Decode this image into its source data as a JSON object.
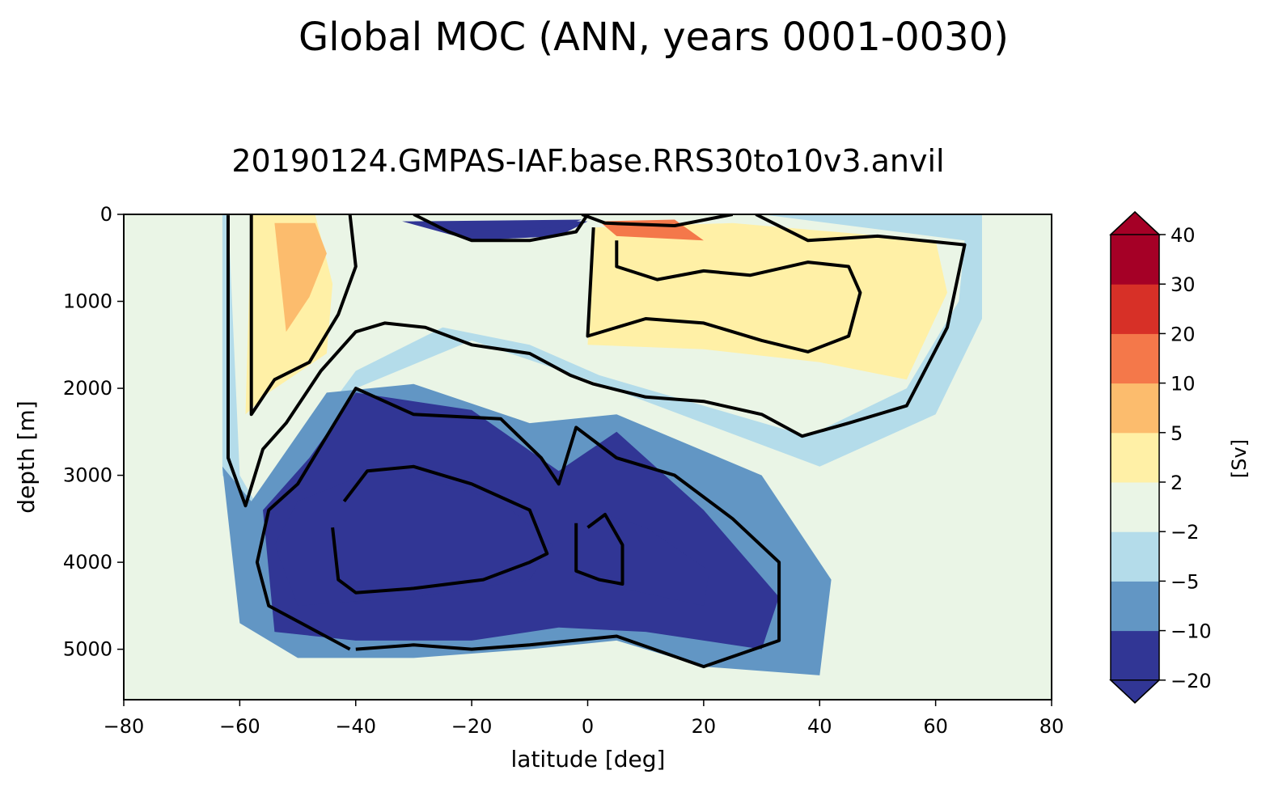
{
  "chart_data": {
    "type": "heatmap",
    "title": "Global MOC (ANN, years 0001-0030)",
    "subtitle": "20190124.GMPAS-IAF.base.RRS30to10v3.anvil",
    "xlabel": "latitude [deg]",
    "ylabel": "depth [m]",
    "xlim": [
      -80,
      80
    ],
    "ylim": [
      5580,
      0
    ],
    "y_inverted": true,
    "xticks": [
      -80,
      -60,
      -40,
      -20,
      0,
      20,
      40,
      60,
      80
    ],
    "xtick_labels": [
      "−80",
      "−60",
      "−40",
      "−20",
      "0",
      "20",
      "40",
      "60",
      "80"
    ],
    "yticks": [
      0,
      1000,
      2000,
      3000,
      4000,
      5000
    ],
    "ytick_labels": [
      "0",
      "1000",
      "2000",
      "3000",
      "4000",
      "5000"
    ],
    "grid": false,
    "colorbar": {
      "label": "[Sv]",
      "levels": [
        -20,
        -10,
        -5,
        -2,
        2,
        5,
        10,
        20,
        30,
        40
      ],
      "tick_labels": [
        "−20",
        "−10",
        "−5",
        "−2",
        "2",
        "5",
        "10",
        "20",
        "30",
        "40"
      ],
      "colors": [
        "#313695",
        "#6296c4",
        "#b4dcea",
        "#eaf5e6",
        "#fff0a6",
        "#fcbc6d",
        "#f4784a",
        "#d73027",
        "#a50026"
      ],
      "extend": "both",
      "extend_low_color": "#313695",
      "extend_high_color": "#a50026"
    },
    "regions": [
      {
        "level": 2,
        "cells": [
          [
            -63,
            0
          ],
          [
            -63,
            1300
          ],
          [
            -63,
            3000
          ],
          [
            -58,
            3450
          ],
          [
            -50,
            2900
          ],
          [
            -40,
            2000
          ],
          [
            -20,
            1450
          ],
          [
            0,
            1900
          ],
          [
            20,
            2400
          ],
          [
            40,
            2900
          ],
          [
            60,
            2300
          ],
          [
            68,
            1200
          ],
          [
            68,
            0
          ]
        ]
      },
      {
        "level": 3,
        "cells": [
          [
            -62,
            0
          ],
          [
            -61,
            1500
          ],
          [
            -60,
            3000
          ],
          [
            -57,
            3350
          ],
          [
            -50,
            2700
          ],
          [
            -40,
            1800
          ],
          [
            -25,
            1300
          ],
          [
            -10,
            1500
          ],
          [
            2,
            1850
          ],
          [
            20,
            2200
          ],
          [
            38,
            2550
          ],
          [
            55,
            2000
          ],
          [
            64,
            1000
          ],
          [
            65,
            300
          ],
          [
            30,
            0
          ]
        ]
      },
      {
        "level": 4,
        "cells": [
          [
            -58,
            0
          ],
          [
            -59,
            2300
          ],
          [
            -55,
            2050
          ],
          [
            -45,
            1600
          ],
          [
            -44,
            800
          ],
          [
            -47,
            0
          ]
        ]
      },
      {
        "level": 4,
        "cells": [
          [
            1,
            150
          ],
          [
            0,
            1500
          ],
          [
            20,
            1550
          ],
          [
            40,
            1700
          ],
          [
            55,
            1900
          ],
          [
            62,
            900
          ],
          [
            60,
            300
          ],
          [
            25,
            100
          ]
        ]
      },
      {
        "level": 5,
        "cells": [
          [
            -54,
            100
          ],
          [
            -52,
            1350
          ],
          [
            -48,
            950
          ],
          [
            -45,
            450
          ],
          [
            -47,
            100
          ]
        ]
      },
      {
        "level": 6,
        "cells": [
          [
            2,
            80
          ],
          [
            5,
            250
          ],
          [
            20,
            300
          ],
          [
            15,
            60
          ]
        ]
      },
      {
        "level": 1,
        "cells": [
          [
            -63,
            2900
          ],
          [
            -60,
            4700
          ],
          [
            -50,
            5100
          ],
          [
            -30,
            5100
          ],
          [
            -10,
            5000
          ],
          [
            5,
            4900
          ],
          [
            20,
            5200
          ],
          [
            40,
            5300
          ],
          [
            42,
            4200
          ],
          [
            30,
            3000
          ],
          [
            5,
            2300
          ],
          [
            -10,
            2400
          ],
          [
            -30,
            1950
          ],
          [
            -45,
            2050
          ],
          [
            -58,
            3300
          ]
        ]
      },
      {
        "level": 0,
        "cells": [
          [
            -56,
            3400
          ],
          [
            -54,
            4800
          ],
          [
            -40,
            4900
          ],
          [
            -20,
            4900
          ],
          [
            -5,
            4750
          ],
          [
            10,
            4800
          ],
          [
            30,
            5000
          ],
          [
            33,
            4400
          ],
          [
            20,
            3400
          ],
          [
            5,
            2500
          ],
          [
            -5,
            2950
          ],
          [
            -20,
            2250
          ],
          [
            -40,
            2050
          ],
          [
            -48,
            2800
          ]
        ]
      },
      {
        "level": 0,
        "cells": [
          [
            -32,
            80
          ],
          [
            -20,
            300
          ],
          [
            -5,
            250
          ],
          [
            0,
            80
          ]
        ]
      },
      {
        "level": -1,
        "cells": [
          [
            -54,
            3800
          ],
          [
            -50,
            4500
          ],
          [
            -30,
            4400
          ],
          [
            -10,
            4200
          ],
          [
            -6,
            3800
          ],
          [
            -15,
            3300
          ],
          [
            -35,
            2900
          ],
          [
            -50,
            3300
          ]
        ]
      },
      {
        "level": -1,
        "cells": [
          [
            -2,
            3600
          ],
          [
            -2,
            4200
          ],
          [
            6,
            4300
          ],
          [
            20,
            4500
          ],
          [
            21,
            4100
          ],
          [
            10,
            3600
          ],
          [
            3,
            3450
          ]
        ]
      },
      {
        "level": -1,
        "cells": [
          [
            -30,
            80
          ],
          [
            -20,
            200
          ],
          [
            -5,
            150
          ],
          [
            -1,
            60
          ]
        ]
      }
    ],
    "contour_lines": [
      [
        [
          -62,
          10
        ],
        [
          -62,
          2800
        ],
        [
          -59,
          3350
        ],
        [
          -56,
          2700
        ],
        [
          -52,
          2400
        ],
        [
          -46,
          1800
        ],
        [
          -40,
          1350
        ],
        [
          -35,
          1250
        ],
        [
          -28,
          1300
        ],
        [
          -20,
          1500
        ],
        [
          -10,
          1600
        ],
        [
          -3,
          1850
        ],
        [
          1,
          1950
        ],
        [
          10,
          2100
        ],
        [
          20,
          2150
        ],
        [
          30,
          2300
        ],
        [
          37,
          2550
        ],
        [
          45,
          2400
        ],
        [
          55,
          2200
        ],
        [
          62,
          1300
        ],
        [
          65,
          350
        ],
        [
          50,
          250
        ],
        [
          38,
          300
        ],
        [
          29,
          0
        ]
      ],
      [
        [
          -58,
          0
        ],
        [
          -58,
          2300
        ],
        [
          -54,
          1900
        ],
        [
          -48,
          1700
        ],
        [
          -43,
          1150
        ],
        [
          -40,
          600
        ],
        [
          -41,
          0
        ]
      ],
      [
        [
          1,
          150
        ],
        [
          0,
          1400
        ],
        [
          10,
          1200
        ],
        [
          20,
          1250
        ],
        [
          30,
          1450
        ],
        [
          38,
          1580
        ],
        [
          45,
          1400
        ],
        [
          47,
          900
        ],
        [
          45,
          600
        ],
        [
          38,
          550
        ],
        [
          28,
          700
        ],
        [
          20,
          650
        ],
        [
          12,
          750
        ],
        [
          5,
          600
        ],
        [
          5,
          300
        ]
      ],
      [
        [
          -41,
          5000
        ],
        [
          -55,
          4500
        ],
        [
          -57,
          4000
        ],
        [
          -55,
          3400
        ],
        [
          -50,
          3100
        ],
        [
          -40,
          2000
        ],
        [
          -30,
          2300
        ],
        [
          -15,
          2350
        ],
        [
          -8,
          2800
        ],
        [
          -5,
          3100
        ],
        [
          -2,
          2450
        ],
        [
          5,
          2800
        ],
        [
          15,
          3000
        ],
        [
          25,
          3500
        ],
        [
          33,
          4000
        ],
        [
          33,
          4900
        ],
        [
          20,
          5200
        ],
        [
          5,
          4850
        ],
        [
          -10,
          4950
        ],
        [
          -20,
          5000
        ],
        [
          -30,
          4950
        ],
        [
          -40,
          5000
        ]
      ],
      [
        [
          -44,
          3600
        ],
        [
          -43,
          4200
        ],
        [
          -40,
          4350
        ],
        [
          -30,
          4300
        ],
        [
          -18,
          4200
        ],
        [
          -10,
          4000
        ],
        [
          -7,
          3900
        ],
        [
          -10,
          3400
        ],
        [
          -20,
          3100
        ],
        [
          -30,
          2900
        ],
        [
          -38,
          2950
        ],
        [
          -42,
          3300
        ]
      ],
      [
        [
          -2,
          3550
        ],
        [
          -2,
          4100
        ],
        [
          2,
          4200
        ],
        [
          6,
          4250
        ],
        [
          6,
          3800
        ],
        [
          3,
          3450
        ],
        [
          0,
          3600
        ]
      ],
      [
        [
          -30,
          0
        ],
        [
          -24,
          200
        ],
        [
          -20,
          300
        ],
        [
          -10,
          300
        ],
        [
          -2,
          200
        ],
        [
          0,
          0
        ]
      ],
      [
        [
          -1,
          0
        ],
        [
          3,
          100
        ],
        [
          15,
          130
        ],
        [
          25,
          0
        ]
      ]
    ]
  }
}
